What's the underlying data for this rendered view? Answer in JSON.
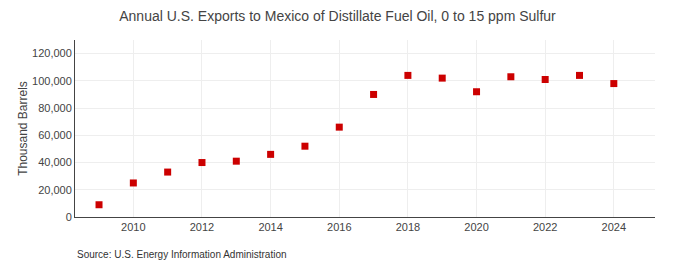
{
  "chart_data": {
    "type": "scatter",
    "title": "Annual U.S. Exports to Mexico of Distillate Fuel Oil, 0 to 15 ppm Sulfur",
    "ylabel": "Thousand Barrels",
    "source": "Source: U.S. Energy Information Administration",
    "x": [
      2009,
      2010,
      2011,
      2012,
      2013,
      2014,
      2015,
      2016,
      2017,
      2018,
      2019,
      2020,
      2021,
      2022,
      2023,
      2024
    ],
    "values": [
      9000,
      25000,
      33000,
      40000,
      41000,
      46000,
      52000,
      66000,
      90000,
      104000,
      102000,
      92000,
      103000,
      101000,
      104000,
      98000
    ],
    "color": "#cc0000",
    "marker": "square",
    "xlim": [
      2008.3,
      2025.2
    ],
    "ylim": [
      0,
      130000
    ],
    "xticks": [
      2010,
      2012,
      2014,
      2016,
      2018,
      2020,
      2022,
      2024
    ],
    "yticks": [
      0,
      {
        "value": 20000,
        "label": "20,000"
      },
      {
        "value": 40000,
        "label": "40,000"
      },
      {
        "value": 60000,
        "label": "60,000"
      },
      {
        "value": 80000,
        "label": "80,000"
      },
      {
        "value": 100000,
        "label": "100,000"
      },
      {
        "value": 120000,
        "label": "120,000"
      }
    ],
    "grid": true
  }
}
